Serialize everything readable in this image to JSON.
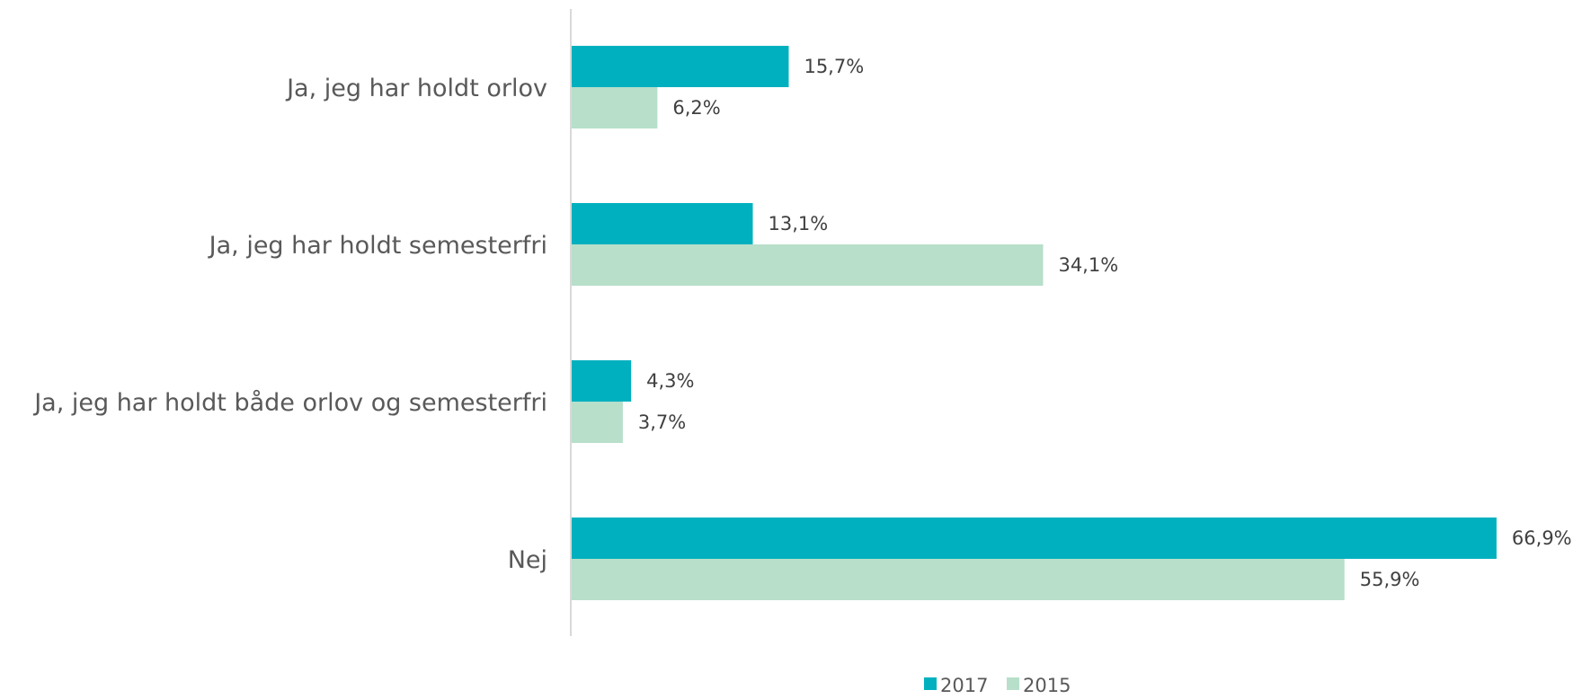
{
  "chart_data": {
    "type": "bar",
    "orientation": "horizontal",
    "categories": [
      "Ja, jeg har holdt orlov",
      "Ja, jeg har holdt semesterfri",
      "Ja, jeg har holdt både orlov og semesterfri",
      "Nej"
    ],
    "series": [
      {
        "name": "2017",
        "color": "#00b0bf",
        "values": [
          15.7,
          13.1,
          4.3,
          66.9
        ],
        "labels": [
          "15,7%",
          "13,1%",
          "4,3%",
          "66,9%"
        ]
      },
      {
        "name": "2015",
        "color": "#b7dfca",
        "values": [
          6.2,
          34.1,
          3.7,
          55.9
        ],
        "labels": [
          "6,2%",
          "34,1%",
          "3,7%",
          "55,9%"
        ]
      }
    ],
    "title": "",
    "xlabel": "",
    "ylabel": "",
    "xlim": [
      0,
      70
    ],
    "grid": false,
    "legend": "bottom"
  }
}
